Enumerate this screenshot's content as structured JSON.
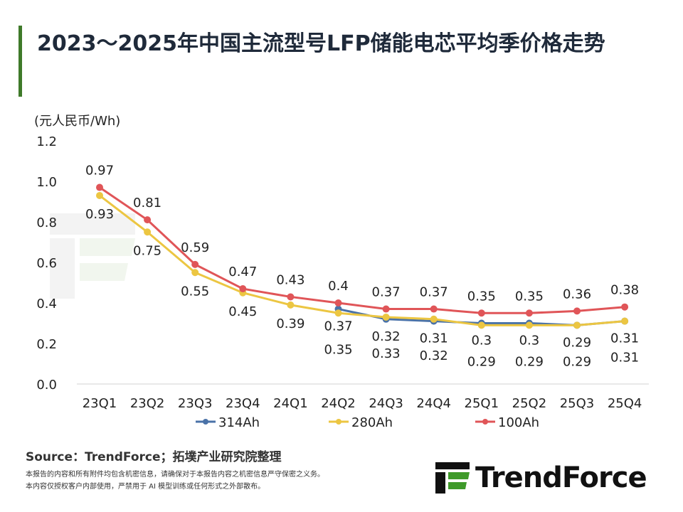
{
  "title": "2023～2025年中国主流型号LFP储能电芯平均季价格走势",
  "source": "Source：TrendForce；拓墣产业研究院整理",
  "notes": [
    "本报告的内容和所有附件均包含机密信息，请确保对于本报告内容之机密信息严守保密之义务。",
    "本内容仅授权客户内部使用，严禁用于 AI 模型训练或任何形式之外部散布。"
  ],
  "logo_text": "TrendForce",
  "chart_data": {
    "type": "line",
    "ylabel": "(元人民币/Wh)",
    "ylim": [
      0,
      1.2
    ],
    "yticks": [
      "0.0",
      "0.2",
      "0.4",
      "0.6",
      "0.8",
      "1.0",
      "1.2"
    ],
    "grid": false,
    "legend_position": "bottom",
    "categories": [
      "23Q1",
      "23Q2",
      "23Q3",
      "23Q4",
      "24Q1",
      "24Q2",
      "24Q3",
      "24Q4",
      "25Q1",
      "25Q2",
      "25Q3",
      "25Q4"
    ],
    "series": [
      {
        "name": "314Ah",
        "color": "#4a72a8",
        "values": [
          null,
          null,
          null,
          null,
          null,
          0.37,
          0.32,
          0.31,
          0.3,
          0.3,
          0.29,
          0.31
        ]
      },
      {
        "name": "280Ah",
        "color": "#ecc642",
        "values": [
          0.93,
          0.75,
          0.55,
          0.45,
          0.39,
          0.35,
          0.33,
          0.32,
          0.29,
          0.29,
          0.29,
          0.31
        ]
      },
      {
        "name": "100Ah",
        "color": "#e05558",
        "values": [
          0.97,
          0.81,
          0.59,
          0.47,
          0.43,
          0.4,
          0.37,
          0.37,
          0.35,
          0.35,
          0.36,
          0.38
        ]
      }
    ]
  }
}
